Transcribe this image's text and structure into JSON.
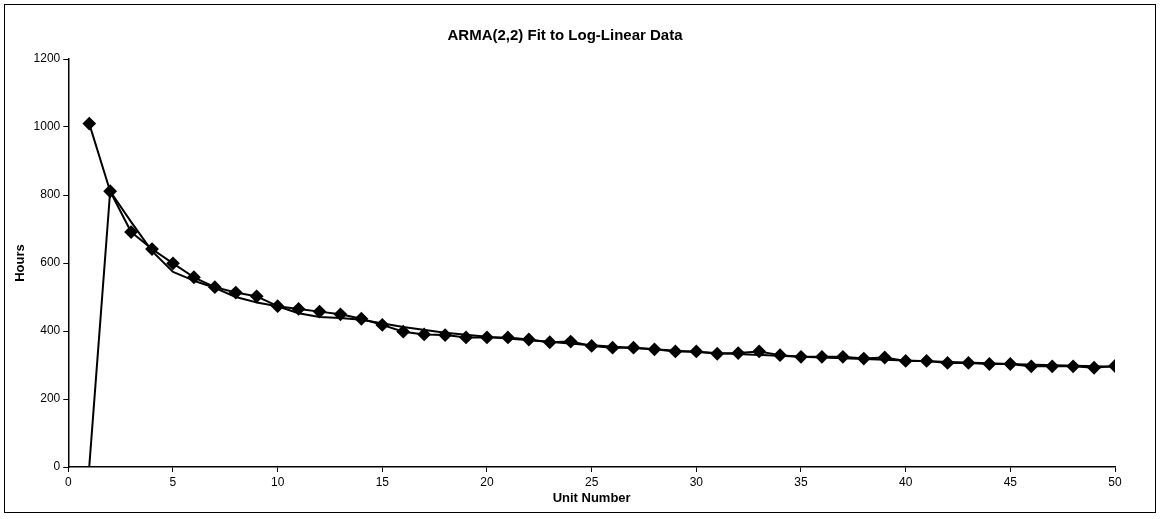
{
  "chart_data": {
    "type": "line",
    "title": "ARMA(2,2) Fit to Log-Linear Data",
    "xlabel": "Unit Number",
    "ylabel": "Hours",
    "xlim": [
      0,
      50
    ],
    "xticks": [
      0,
      5,
      10,
      15,
      20,
      25,
      30,
      35,
      40,
      45,
      50
    ],
    "ylim": [
      0,
      1200
    ],
    "yticks": [
      0,
      200,
      400,
      600,
      800,
      1000,
      1200
    ],
    "grid": false,
    "legend": false,
    "series": [
      {
        "color": "#000000",
        "marker": "diamond",
        "x": [
          1,
          2,
          3,
          4,
          5,
          6,
          7,
          8,
          9,
          10,
          11,
          12,
          13,
          14,
          15,
          16,
          17,
          18,
          19,
          20,
          21,
          22,
          23,
          24,
          25,
          26,
          27,
          28,
          29,
          30,
          31,
          32,
          33,
          34,
          35,
          36,
          37,
          38,
          39,
          40,
          41,
          42,
          43,
          44,
          45,
          46,
          47,
          48,
          49,
          50
        ],
        "values": [
          1010,
          811,
          691,
          641,
          599,
          558,
          529,
          513,
          502,
          473,
          465,
          457,
          449,
          436,
          418,
          398,
          390,
          388,
          381,
          381,
          381,
          375,
          367,
          369,
          356,
          351,
          351,
          346,
          340,
          340,
          333,
          335,
          340,
          329,
          324,
          324,
          324,
          319,
          322,
          312,
          312,
          306,
          306,
          303,
          303,
          296,
          296,
          296,
          292,
          297
        ]
      },
      {
        "color": "#000000",
        "marker": "none",
        "x": [
          1,
          2,
          3,
          4,
          5,
          6,
          7,
          8,
          9,
          10,
          11,
          12,
          13,
          14,
          16,
          18,
          20,
          25,
          30,
          35,
          40,
          45,
          50
        ],
        "values": [
          0,
          811,
          721,
          635,
          574,
          548,
          527,
          500,
          484,
          473,
          452,
          441,
          438,
          433,
          412,
          395,
          383,
          358,
          338,
          324,
          313,
          303,
          295
        ]
      }
    ]
  }
}
